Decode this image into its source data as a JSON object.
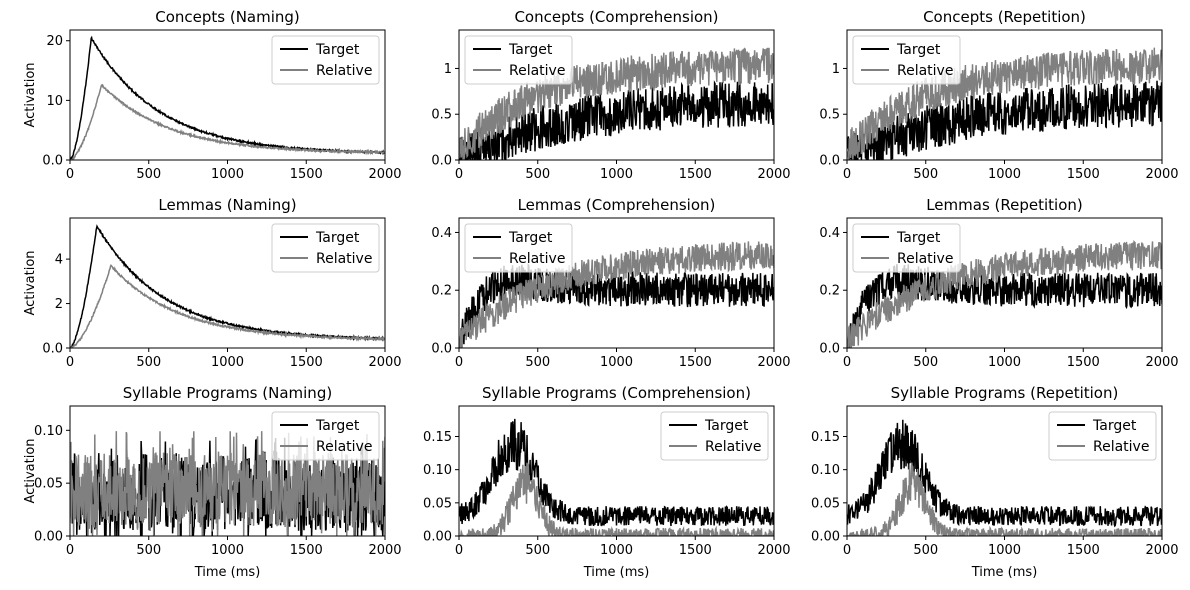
{
  "figure": {
    "background": "#ffffff"
  },
  "chart_data": [
    {
      "type": "line",
      "title": "Concepts (Naming)",
      "xlabel": "",
      "ylabel": "Activation",
      "xlim": [
        0,
        2000
      ],
      "ylim": [
        0,
        21.8
      ],
      "xticks": [
        0,
        500,
        1000,
        1500,
        2000
      ],
      "yticks": [
        0,
        10,
        20
      ],
      "legend_loc": "top-right",
      "grid": false,
      "series": [
        {
          "name": "Target",
          "color": "#000000",
          "pattern": "peak",
          "peak": 20.5,
          "peak_t": 135,
          "tail": 1.0,
          "noise": 0.15
        },
        {
          "name": "Relative",
          "color": "#808080",
          "pattern": "peak",
          "peak": 12.6,
          "peak_t": 200,
          "tail": 1.1,
          "noise": 0.15
        }
      ]
    },
    {
      "type": "line",
      "title": "Concepts (Comprehension)",
      "xlabel": "",
      "ylabel": "",
      "xlim": [
        0,
        2000
      ],
      "ylim": [
        0,
        1.42
      ],
      "xticks": [
        0,
        500,
        1000,
        1500,
        2000
      ],
      "yticks": [
        0.0,
        0.5,
        1.0
      ],
      "legend_loc": "top-left",
      "grid": false,
      "series": [
        {
          "name": "Target",
          "color": "#000000",
          "pattern": "rise",
          "start": 0.0,
          "end": 0.65,
          "tau": 650,
          "noise": 0.25
        },
        {
          "name": "Relative",
          "color": "#808080",
          "pattern": "rise",
          "start": 0.1,
          "end": 1.05,
          "tau": 500,
          "noise": 0.2
        }
      ]
    },
    {
      "type": "line",
      "title": "Concepts (Repetition)",
      "xlabel": "",
      "ylabel": "",
      "xlim": [
        0,
        2000
      ],
      "ylim": [
        0,
        1.42
      ],
      "xticks": [
        0,
        500,
        1000,
        1500,
        2000
      ],
      "yticks": [
        0.0,
        0.5,
        1.0
      ],
      "legend_loc": "top-left",
      "grid": false,
      "series": [
        {
          "name": "Target",
          "color": "#000000",
          "pattern": "rise",
          "start": 0.0,
          "end": 0.65,
          "tau": 650,
          "noise": 0.25
        },
        {
          "name": "Relative",
          "color": "#808080",
          "pattern": "rise",
          "start": 0.1,
          "end": 1.05,
          "tau": 500,
          "noise": 0.2
        }
      ]
    },
    {
      "type": "line",
      "title": "Lemmas (Naming)",
      "xlabel": "",
      "ylabel": "Activation",
      "xlim": [
        0,
        2000
      ],
      "ylim": [
        0,
        5.85
      ],
      "xticks": [
        0,
        500,
        1000,
        1500,
        2000
      ],
      "yticks": [
        0,
        2,
        4
      ],
      "legend_loc": "top-right",
      "grid": false,
      "series": [
        {
          "name": "Target",
          "color": "#000000",
          "pattern": "peak",
          "peak": 5.5,
          "peak_t": 170,
          "tail": 0.35,
          "noise": 0.04
        },
        {
          "name": "Relative",
          "color": "#808080",
          "pattern": "peak",
          "peak": 3.7,
          "peak_t": 260,
          "tail": 0.35,
          "noise": 0.04
        }
      ]
    },
    {
      "type": "line",
      "title": "Lemmas (Comprehension)",
      "xlabel": "",
      "ylabel": "",
      "xlim": [
        0,
        2000
      ],
      "ylim": [
        0,
        0.45
      ],
      "xticks": [
        0,
        500,
        1000,
        1500,
        2000
      ],
      "yticks": [
        0.0,
        0.2,
        0.4
      ],
      "legend_loc": "top-left",
      "grid": false,
      "series": [
        {
          "name": "Target",
          "color": "#000000",
          "pattern": "hump",
          "early": 0.25,
          "early_t": 320,
          "end": 0.2,
          "noise": 0.06
        },
        {
          "name": "Relative",
          "color": "#808080",
          "pattern": "rise",
          "start": 0.02,
          "end": 0.33,
          "tau": 550,
          "noise": 0.05
        }
      ]
    },
    {
      "type": "line",
      "title": "Lemmas (Repetition)",
      "xlabel": "",
      "ylabel": "",
      "xlim": [
        0,
        2000
      ],
      "ylim": [
        0,
        0.45
      ],
      "xticks": [
        0,
        500,
        1000,
        1500,
        2000
      ],
      "yticks": [
        0.0,
        0.2,
        0.4
      ],
      "legend_loc": "top-left",
      "grid": false,
      "series": [
        {
          "name": "Target",
          "color": "#000000",
          "pattern": "hump",
          "early": 0.25,
          "early_t": 320,
          "end": 0.2,
          "noise": 0.06
        },
        {
          "name": "Relative",
          "color": "#808080",
          "pattern": "rise",
          "start": 0.02,
          "end": 0.33,
          "tau": 550,
          "noise": 0.05
        }
      ]
    },
    {
      "type": "line",
      "title": "Syllable Programs (Naming)",
      "xlabel": "Time (ms)",
      "ylabel": "Activation",
      "xlim": [
        0,
        2000
      ],
      "ylim": [
        0,
        0.123
      ],
      "xticks": [
        0,
        500,
        1000,
        1500,
        2000
      ],
      "yticks": [
        0.0,
        0.05,
        0.1
      ],
      "ytick_labels": [
        "0.00",
        "0.05",
        "0.10"
      ],
      "legend_loc": "top-right",
      "grid": false,
      "series": [
        {
          "name": "Target",
          "color": "#000000",
          "pattern": "noise",
          "mean": 0.04,
          "noise": 0.035
        },
        {
          "name": "Relative",
          "color": "#808080",
          "pattern": "noise",
          "mean": 0.045,
          "noise": 0.035
        }
      ]
    },
    {
      "type": "line",
      "title": "Syllable Programs (Comprehension)",
      "xlabel": "Time (ms)",
      "ylabel": "",
      "xlim": [
        0,
        2000
      ],
      "ylim": [
        0,
        0.196
      ],
      "xticks": [
        0,
        500,
        1000,
        1500,
        2000
      ],
      "yticks": [
        0.0,
        0.05,
        0.1,
        0.15
      ],
      "ytick_labels": [
        "0.00",
        "0.05",
        "0.10",
        "0.15"
      ],
      "legend_loc": "top-right",
      "grid": false,
      "series": [
        {
          "name": "Target",
          "color": "#000000",
          "pattern": "bump",
          "base": 0.03,
          "peak": 0.14,
          "peak_t": 350,
          "width": 180,
          "noise": 0.025
        },
        {
          "name": "Relative",
          "color": "#808080",
          "pattern": "bump",
          "base": 0.0,
          "peak": 0.08,
          "peak_t": 420,
          "width": 120,
          "noise": 0.02
        }
      ]
    },
    {
      "type": "line",
      "title": "Syllable Programs (Repetition)",
      "xlabel": "Time (ms)",
      "ylabel": "",
      "xlim": [
        0,
        2000
      ],
      "ylim": [
        0,
        0.196
      ],
      "xticks": [
        0,
        500,
        1000,
        1500,
        2000
      ],
      "yticks": [
        0.0,
        0.05,
        0.1,
        0.15
      ],
      "ytick_labels": [
        "0.00",
        "0.05",
        "0.10",
        "0.15"
      ],
      "legend_loc": "top-right",
      "grid": false,
      "series": [
        {
          "name": "Target",
          "color": "#000000",
          "pattern": "bump",
          "base": 0.03,
          "peak": 0.14,
          "peak_t": 350,
          "width": 180,
          "noise": 0.025
        },
        {
          "name": "Relative",
          "color": "#808080",
          "pattern": "bump",
          "base": 0.0,
          "peak": 0.08,
          "peak_t": 420,
          "width": 120,
          "noise": 0.02
        }
      ]
    }
  ]
}
